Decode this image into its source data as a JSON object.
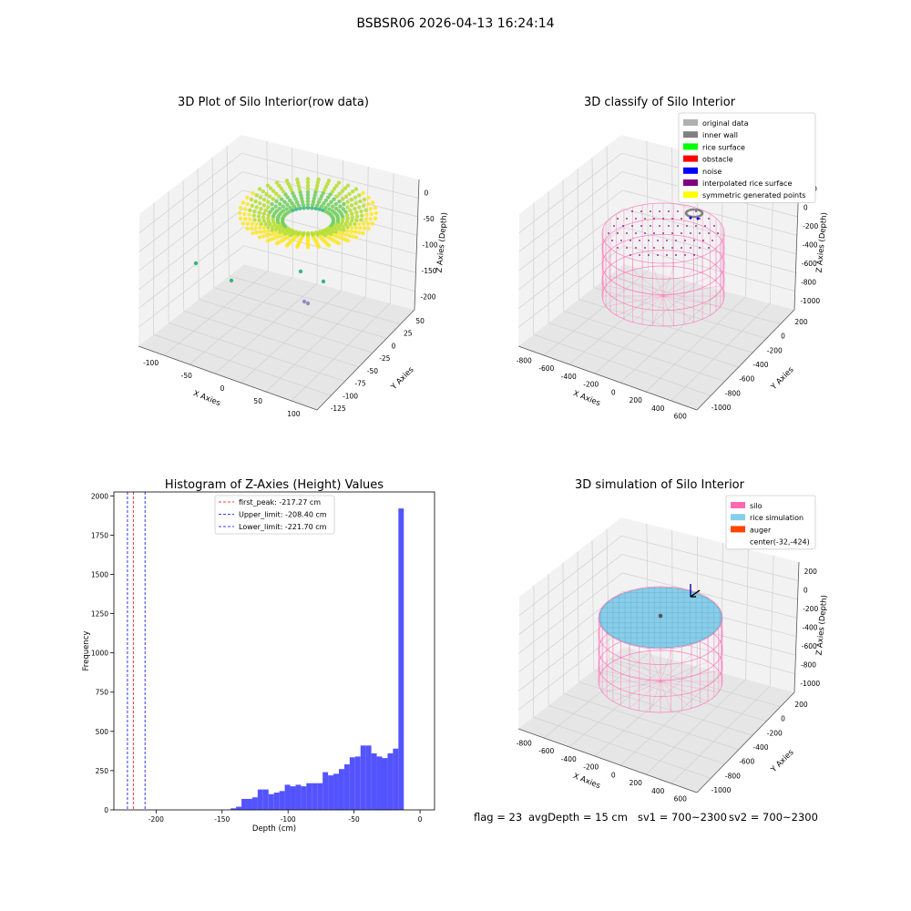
{
  "figure": {
    "title": "BSBSR06 2026-04-13 16:24:14",
    "status_line": {
      "flag": "flag = 23",
      "avg_depth": "avgDepth = 15 cm",
      "sv1": "sv1 = 700~2300",
      "sv2": "sv2 = 700~2300"
    }
  },
  "colors": {
    "pane": "#f2f2f2",
    "pane_dark": "#e6e6e6",
    "grid": "#d0d0d0",
    "silo": "#ff69b4",
    "rice_simulation": "#87ceeb",
    "auger": "#ff4500",
    "histogram_bar": "#4b4bff",
    "first_peak": "#ff0000",
    "limits": "#0000ff"
  },
  "chart_data": [
    {
      "type": "scatter",
      "projection": "3d",
      "title": "3D Plot of Silo Interior(row data)",
      "xlabel": "X Axies",
      "ylabel": "Y Axies",
      "zlabel": "Z Axies (Depth)",
      "xticks": [
        "-100",
        "-50",
        "0",
        "50",
        "100"
      ],
      "yticks": [
        "-125",
        "-100",
        "-75",
        "-50",
        "-25",
        "0",
        "25",
        "50"
      ],
      "zticks": [
        "0",
        "-50",
        "-100",
        "-150",
        "-200"
      ],
      "xlim": [
        -130,
        110
      ],
      "ylim": [
        -130,
        60
      ],
      "zlim": [
        -230,
        10
      ],
      "colormap": "viridis",
      "description_points": {
        "surface": "dense bowl-shaped point cloud between z 0 and -60",
        "outliers": [
          {
            "x": -120,
            "y": 10,
            "z": -150
          },
          {
            "x": -70,
            "y": -20,
            "z": -170
          },
          {
            "x": 30,
            "y": 20,
            "z": -160
          },
          {
            "x": 60,
            "y": 0,
            "z": -175
          },
          {
            "x": 20,
            "y": -60,
            "z": -205
          },
          {
            "x": 25,
            "y": -62,
            "z": -207
          }
        ]
      }
    },
    {
      "type": "scatter",
      "projection": "3d",
      "title": "3D classify of Silo Interior",
      "xlabel": "X Axies",
      "ylabel": "Y Axies",
      "zlabel": "Z Axies (Depth)",
      "xticks": [
        "-800",
        "-600",
        "-400",
        "-200",
        "0",
        "200",
        "400",
        "600"
      ],
      "yticks": [
        "-1000",
        "-800",
        "-600",
        "-400",
        "-200",
        "0",
        "200"
      ],
      "zticks": [
        "200",
        "0",
        "-200",
        "-400",
        "-600",
        "-800",
        "-1000"
      ],
      "legend": [
        {
          "label": "original data",
          "color": "#b0b0b0"
        },
        {
          "label": "inner wall",
          "color": "#808080"
        },
        {
          "label": "rice surface",
          "color": "#00ff00"
        },
        {
          "label": "obstacle",
          "color": "#ff0000"
        },
        {
          "label": "noise",
          "color": "#0000ff"
        },
        {
          "label": "interpolated rice surface",
          "color": "#800080"
        },
        {
          "label": "symmetric generated points",
          "color": "#ffff00"
        }
      ],
      "legend_position": "upper right"
    },
    {
      "type": "bar",
      "title": "Histogram of Z-Axies (Height) Values",
      "xlabel": "Depth (cm)",
      "ylabel": "Frequency",
      "xlim": [
        -232,
        11
      ],
      "ylim": [
        0,
        2025
      ],
      "xticks": [
        -200,
        -150,
        -100,
        -50,
        0
      ],
      "yticks": [
        0,
        250,
        500,
        750,
        1000,
        1250,
        1500,
        1750,
        2000
      ],
      "bin_width": 4.1,
      "bin_start": -143.5,
      "values": [
        10,
        20,
        70,
        70,
        80,
        130,
        130,
        100,
        110,
        120,
        160,
        150,
        160,
        150,
        170,
        170,
        170,
        240,
        220,
        230,
        260,
        290,
        335,
        340,
        410,
        410,
        360,
        340,
        330,
        360,
        390,
        1920
      ],
      "vlines": [
        {
          "label": "first_peak: -217.27 cm",
          "x": -217.27,
          "color": "#ff0000"
        },
        {
          "label": "Upper_limit: -208.40 cm",
          "x": -208.4,
          "color": "#0000ff"
        },
        {
          "label": "Lower_limit: -221.70 cm",
          "x": -221.7,
          "color": "#0000ff"
        }
      ],
      "legend_position": "upper center"
    },
    {
      "type": "scatter",
      "projection": "3d",
      "title": "3D simulation of Silo Interior",
      "xlabel": "X Axies",
      "ylabel": "Y Axies",
      "zlabel": "Z Axies (Depth)",
      "xticks": [
        "-800",
        "-600",
        "-400",
        "-200",
        "0",
        "200",
        "400",
        "600"
      ],
      "yticks": [
        "-1000",
        "-800",
        "-600",
        "-400",
        "-200",
        "0",
        "200"
      ],
      "zticks": [
        "200",
        "0",
        "-200",
        "-400",
        "-600",
        "-800",
        "-1000"
      ],
      "legend": [
        {
          "label": "silo",
          "color": "#ff69b4"
        },
        {
          "label": "rice simulation",
          "color": "#87ceeb"
        },
        {
          "label": "auger",
          "color": "#ff4500"
        },
        {
          "label": "center(-32,-424)",
          "color": ""
        }
      ],
      "legend_position": "upper right"
    }
  ]
}
